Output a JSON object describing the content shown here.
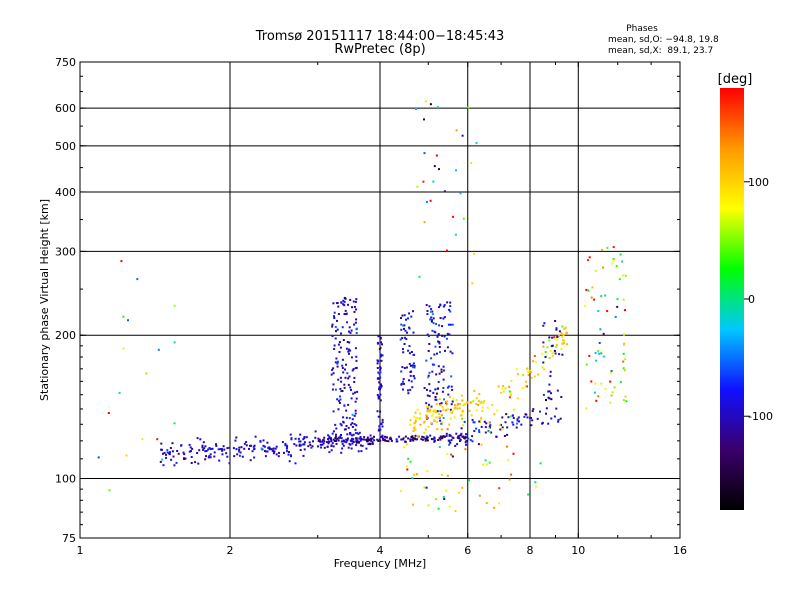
{
  "chart_data": {
    "type": "scatter",
    "title": "Tromsø 20151117 18:44:00−18:45:43",
    "subtitle": "RwPretec (8p)",
    "xlabel": "Frequency [MHz]",
    "ylabel": "Stationary phase Virtual Height [km]",
    "x_scale": "log",
    "y_scale": "log",
    "xlim": [
      1,
      16
    ],
    "ylim": [
      75,
      750
    ],
    "x_ticks": [
      1,
      2,
      4,
      6,
      8,
      10,
      16
    ],
    "y_ticks": [
      75,
      100,
      200,
      300,
      400,
      500,
      600,
      750
    ],
    "x_grid": [
      2,
      4,
      6,
      8,
      10
    ],
    "y_grid": [
      100,
      200,
      300,
      400,
      500,
      600
    ],
    "stats": {
      "header": "Phases",
      "line_o": "mean, sd,O: −94.8, 19.8",
      "line_x": "mean, sd,X:  89.1, 23.7"
    },
    "colorbar": {
      "label": "[deg]",
      "range": [
        -180,
        180
      ],
      "ticks": [
        100,
        0,
        -100
      ],
      "colormap": [
        "#000000",
        "#3b006b",
        "#1010ff",
        "#00c8ff",
        "#00ff00",
        "#ffff00",
        "#ff9900",
        "#ff0000"
      ]
    },
    "clusters": [
      {
        "name": "o-trace-low",
        "x_from": 1.45,
        "x_to": 3.9,
        "y_from": 112,
        "y_to": 121,
        "spread_y": 6,
        "count": 260,
        "phase": -95,
        "phase_sd": 15
      },
      {
        "name": "o-trace-flat",
        "x_from": 3.0,
        "x_to": 6.0,
        "y_from": 120,
        "y_to": 122,
        "spread_y": 2,
        "count": 150,
        "phase": -120,
        "phase_sd": 20
      },
      {
        "name": "o-column-3.5",
        "x_from": 3.2,
        "x_to": 3.6,
        "y_from": 120,
        "y_to": 240,
        "spread_y": 0,
        "count": 160,
        "phase": -95,
        "phase_sd": 18
      },
      {
        "name": "o-column-4",
        "x_from": 3.95,
        "x_to": 4.05,
        "y_from": 122,
        "y_to": 200,
        "spread_y": 0,
        "count": 60,
        "phase": -100,
        "phase_sd": 15
      },
      {
        "name": "o-column-4.5",
        "x_from": 4.4,
        "x_to": 4.7,
        "y_from": 150,
        "y_to": 225,
        "spread_y": 0,
        "count": 60,
        "phase": -95,
        "phase_sd": 20
      },
      {
        "name": "o-column-5",
        "x_from": 4.9,
        "x_to": 5.6,
        "y_from": 130,
        "y_to": 235,
        "spread_y": 0,
        "count": 120,
        "phase": -90,
        "phase_sd": 25
      },
      {
        "name": "x-trace-mid",
        "x_from": 4.6,
        "x_to": 6.5,
        "y_from": 130,
        "y_to": 145,
        "spread_y": 10,
        "count": 120,
        "phase": 100,
        "phase_sd": 20
      },
      {
        "name": "o-trace-high",
        "x_from": 5.5,
        "x_to": 8.5,
        "y_from": 122,
        "y_to": 135,
        "spread_y": 8,
        "count": 80,
        "phase": -95,
        "phase_sd": 20
      },
      {
        "name": "x-trace-high",
        "x_from": 6.5,
        "x_to": 9.5,
        "y_from": 130,
        "y_to": 200,
        "spread_y": 15,
        "count": 80,
        "phase": 95,
        "phase_sd": 25
      },
      {
        "name": "o-column-9",
        "x_from": 8.5,
        "x_to": 9.3,
        "y_from": 130,
        "y_to": 215,
        "spread_y": 0,
        "count": 40,
        "phase": -100,
        "phase_sd": 20
      },
      {
        "name": "mixed-11",
        "x_from": 10.3,
        "x_to": 12.5,
        "y_from": 140,
        "y_to": 310,
        "spread_y": 0,
        "count": 70,
        "phase": 60,
        "phase_sd": 80
      },
      {
        "name": "x-noise-below",
        "x_from": 4.4,
        "x_to": 8.5,
        "y_from": 85,
        "y_to": 118,
        "spread_y": 0,
        "count": 50,
        "phase": 80,
        "phase_sd": 60
      },
      {
        "name": "scatter-high",
        "x_from": 4.5,
        "x_to": 6.3,
        "y_from": 240,
        "y_to": 640,
        "spread_y": 0,
        "count": 30,
        "phase": 20,
        "phase_sd": 100
      },
      {
        "name": "low-freq-sparse",
        "x_from": 1.05,
        "x_to": 1.6,
        "y_from": 85,
        "y_to": 290,
        "spread_y": 0,
        "count": 18,
        "phase": 40,
        "phase_sd": 120
      }
    ]
  }
}
